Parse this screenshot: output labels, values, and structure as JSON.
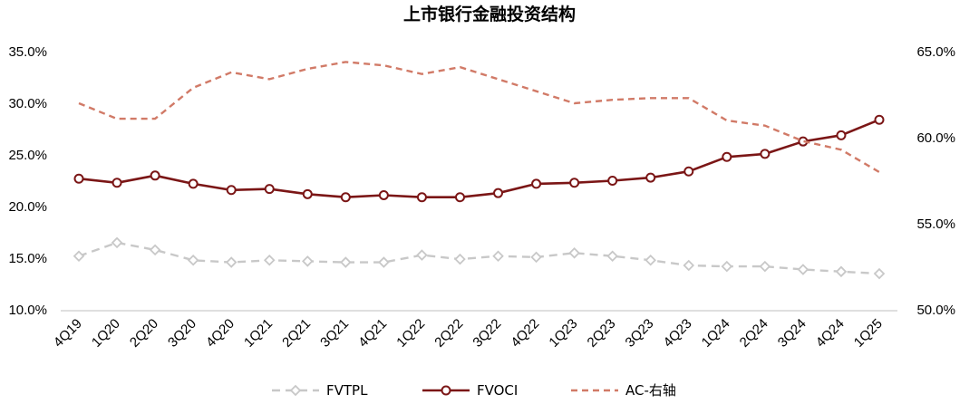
{
  "chart_data": {
    "type": "line",
    "title": "上市银行金融投资结构",
    "categories": [
      "4Q19",
      "1Q20",
      "2Q20",
      "3Q20",
      "4Q20",
      "1Q21",
      "2Q21",
      "3Q21",
      "4Q21",
      "1Q22",
      "2Q22",
      "3Q22",
      "4Q22",
      "1Q23",
      "2Q23",
      "3Q23",
      "4Q23",
      "1Q24",
      "2Q24",
      "3Q24",
      "4Q24",
      "1Q25"
    ],
    "y_left": {
      "min": 10,
      "max": 35,
      "step": 5,
      "ticks": [
        "10.0%",
        "15.0%",
        "20.0%",
        "25.0%",
        "30.0%",
        "35.0%"
      ]
    },
    "y_right": {
      "min": 50,
      "max": 65,
      "step": 5,
      "ticks": [
        "50.0%",
        "55.0%",
        "60.0%",
        "65.0%"
      ]
    },
    "series": [
      {
        "name": "FVTPL",
        "axis": "left",
        "color": "#c8c8c8",
        "style": "dashed",
        "marker": "diamond",
        "values": [
          15.2,
          16.5,
          15.8,
          14.8,
          14.6,
          14.8,
          14.7,
          14.6,
          14.6,
          15.3,
          14.9,
          15.2,
          15.1,
          15.5,
          15.2,
          14.8,
          14.3,
          14.2,
          14.2,
          13.9,
          13.7,
          13.5
        ]
      },
      {
        "name": "FVOCI",
        "axis": "left",
        "color": "#7b1616",
        "style": "solid",
        "marker": "circle",
        "values": [
          22.7,
          22.3,
          23.0,
          22.2,
          21.6,
          21.7,
          21.2,
          20.9,
          21.1,
          20.9,
          20.9,
          21.3,
          22.2,
          22.3,
          22.5,
          22.8,
          23.4,
          24.8,
          25.1,
          26.3,
          26.9,
          28.4
        ]
      },
      {
        "name": "AC-右轴",
        "axis": "right",
        "color": "#d17a67",
        "style": "dashed",
        "marker": "none",
        "values": [
          62.0,
          61.1,
          61.1,
          62.9,
          63.8,
          63.4,
          64.0,
          64.4,
          64.2,
          63.7,
          64.1,
          63.4,
          62.7,
          62.0,
          62.2,
          62.3,
          62.3,
          61.0,
          60.7,
          59.8,
          59.3,
          58.0
        ]
      }
    ],
    "legend": {
      "position": "bottom",
      "entries": [
        "FVTPL",
        "FVOCI",
        "AC-右轴"
      ]
    },
    "grid": false
  }
}
